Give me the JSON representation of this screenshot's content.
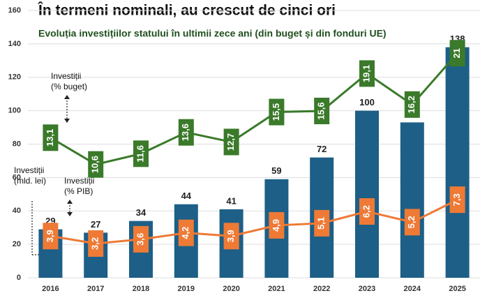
{
  "chart_data": {
    "type": "bar",
    "title": "În termeni nominali, au crescut de cinci ori",
    "subtitle": "Evoluția investițiilor statului în ultimii zece ani (din buget și din fonduri UE)",
    "categories": [
      "2016",
      "2017",
      "2018",
      "2019",
      "2020",
      "2021",
      "2022",
      "2023",
      "2024",
      "2025"
    ],
    "ylim": [
      0,
      160
    ],
    "yticks": [
      0,
      20,
      40,
      60,
      80,
      100,
      120,
      140,
      160
    ],
    "grid": true,
    "y2lim": [
      0,
      25
    ],
    "series": [
      {
        "name": "Investiții (mld. lei)",
        "type": "bar",
        "color": "#1d5f87",
        "values": [
          29,
          27,
          34,
          44,
          41,
          59,
          72,
          100,
          93,
          138
        ]
      },
      {
        "name": "Investiții (% buget)",
        "type": "line",
        "axis": "y2",
        "color": "#3a7a2a",
        "values": [
          13.1,
          10.6,
          11.6,
          13.6,
          12.7,
          15.5,
          15.6,
          19.1,
          16.2,
          21
        ],
        "value_labels": [
          "13,1",
          "10,6",
          "11,6",
          "13,6",
          "12,7",
          "15,5",
          "15,6",
          "19,1",
          "16,2",
          "21"
        ]
      },
      {
        "name": "Investiții (% PIB)",
        "type": "line",
        "axis": "y2",
        "color": "#ee7a36",
        "values": [
          3.9,
          3.2,
          3.6,
          4.2,
          3.9,
          4.9,
          5.1,
          6.2,
          5.2,
          7.3
        ],
        "value_labels": [
          "3,9",
          "3,2",
          "3,6",
          "4,2",
          "3,9",
          "4,9",
          "5,1",
          "6,2",
          "5,2",
          "7,3"
        ]
      }
    ],
    "annotations": [
      {
        "lines": [
          "Investiții",
          "(% buget)"
        ]
      },
      {
        "lines": [
          "Investiții",
          "(mld. lei)"
        ]
      },
      {
        "lines": [
          "Investiții",
          "(% PIB)"
        ]
      }
    ]
  }
}
